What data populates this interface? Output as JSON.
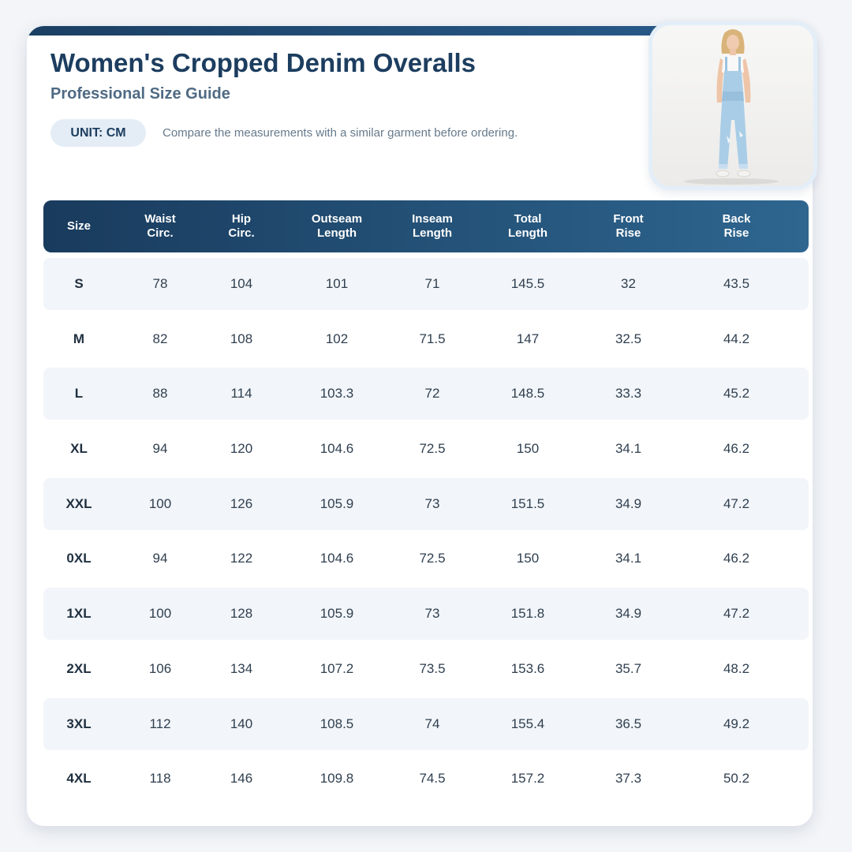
{
  "header": {
    "title": "Women's Cropped Denim Overalls",
    "subtitle": "Professional Size Guide",
    "unit_badge": "UNIT: CM",
    "note": "Compare the measurements with a similar garment before ordering."
  },
  "colors": {
    "accent_dark": "#1b3f63",
    "accent_light": "#2e6690",
    "row_shade": "#f2f5f9",
    "badge_bg": "#e4edf6"
  },
  "image": {
    "icon": "model-wearing-denim-overalls-photo"
  },
  "table": {
    "columns": [
      "Size",
      "Waist\nCirc.",
      "Hip\nCirc.",
      "Outseam\nLength",
      "Inseam\nLength",
      "Total\nLength",
      "Front\nRise",
      "Back\nRise"
    ],
    "rows": [
      [
        "S",
        "78",
        "104",
        "101",
        "71",
        "145.5",
        "32",
        "43.5"
      ],
      [
        "M",
        "82",
        "108",
        "102",
        "71.5",
        "147",
        "32.5",
        "44.2"
      ],
      [
        "L",
        "88",
        "114",
        "103.3",
        "72",
        "148.5",
        "33.3",
        "45.2"
      ],
      [
        "XL",
        "94",
        "120",
        "104.6",
        "72.5",
        "150",
        "34.1",
        "46.2"
      ],
      [
        "XXL",
        "100",
        "126",
        "105.9",
        "73",
        "151.5",
        "34.9",
        "47.2"
      ],
      [
        "0XL",
        "94",
        "122",
        "104.6",
        "72.5",
        "150",
        "34.1",
        "46.2"
      ],
      [
        "1XL",
        "100",
        "128",
        "105.9",
        "73",
        "151.8",
        "34.9",
        "47.2"
      ],
      [
        "2XL",
        "106",
        "134",
        "107.2",
        "73.5",
        "153.6",
        "35.7",
        "48.2"
      ],
      [
        "3XL",
        "112",
        "140",
        "108.5",
        "74",
        "155.4",
        "36.5",
        "49.2"
      ],
      [
        "4XL",
        "118",
        "146",
        "109.8",
        "74.5",
        "157.2",
        "37.3",
        "50.2"
      ]
    ]
  }
}
